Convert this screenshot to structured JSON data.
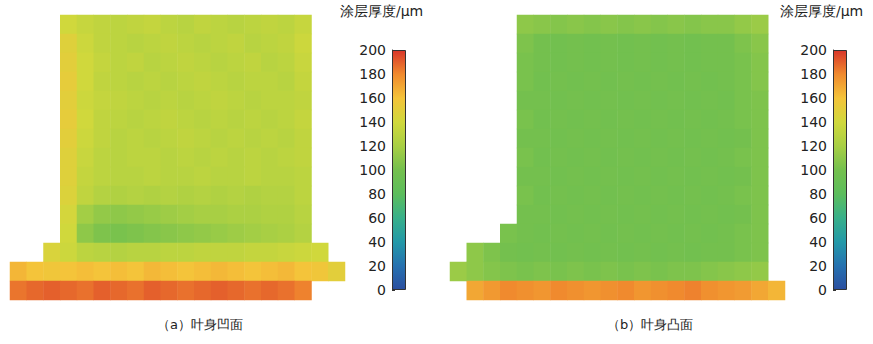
{
  "chart_data": [
    {
      "type": "heatmap",
      "title": "（a）叶身凹面",
      "colorbar": {
        "label": "涂层厚度/μm",
        "range": [
          0,
          200
        ],
        "ticks": [
          0,
          20,
          40,
          60,
          80,
          100,
          120,
          140,
          160,
          180,
          200
        ]
      },
      "cells": [
        [
          null,
          null,
          null,
          140,
          135,
          132,
          130,
          132,
          134,
          130,
          128,
          132,
          130,
          128,
          130,
          132,
          130,
          135,
          null,
          null
        ],
        [
          null,
          null,
          null,
          148,
          138,
          132,
          130,
          128,
          130,
          132,
          130,
          128,
          130,
          132,
          128,
          130,
          132,
          138,
          null,
          null
        ],
        [
          null,
          null,
          null,
          150,
          140,
          134,
          130,
          132,
          128,
          130,
          132,
          130,
          128,
          130,
          132,
          128,
          130,
          136,
          null,
          null
        ],
        [
          null,
          null,
          null,
          152,
          140,
          132,
          130,
          128,
          130,
          128,
          130,
          132,
          130,
          128,
          130,
          130,
          128,
          134,
          null,
          null
        ],
        [
          null,
          null,
          null,
          150,
          138,
          134,
          132,
          130,
          128,
          130,
          128,
          130,
          132,
          130,
          128,
          130,
          130,
          132,
          null,
          null
        ],
        [
          null,
          null,
          null,
          152,
          140,
          132,
          130,
          128,
          130,
          132,
          130,
          128,
          130,
          128,
          130,
          128,
          130,
          134,
          null,
          null
        ],
        [
          null,
          null,
          null,
          150,
          138,
          132,
          128,
          130,
          128,
          130,
          132,
          130,
          128,
          130,
          128,
          130,
          128,
          132,
          null,
          null
        ],
        [
          null,
          null,
          null,
          148,
          136,
          130,
          128,
          130,
          130,
          128,
          130,
          128,
          130,
          128,
          130,
          128,
          130,
          132,
          null,
          null
        ],
        [
          null,
          null,
          null,
          148,
          134,
          130,
          128,
          128,
          130,
          128,
          128,
          130,
          128,
          128,
          130,
          128,
          128,
          130,
          null,
          null
        ],
        [
          null,
          null,
          null,
          146,
          132,
          126,
          124,
          126,
          124,
          126,
          124,
          126,
          124,
          126,
          124,
          126,
          126,
          130,
          null,
          null
        ],
        [
          null,
          null,
          null,
          142,
          118,
          112,
          110,
          112,
          114,
          116,
          118,
          120,
          120,
          122,
          122,
          124,
          124,
          128,
          null,
          null
        ],
        [
          null,
          null,
          null,
          140,
          110,
          104,
          102,
          104,
          106,
          108,
          110,
          112,
          114,
          116,
          118,
          120,
          122,
          126,
          null,
          null
        ],
        [
          null,
          null,
          145,
          138,
          130,
          128,
          126,
          128,
          128,
          130,
          130,
          132,
          132,
          132,
          134,
          134,
          136,
          138,
          140,
          null
        ],
        [
          165,
          160,
          158,
          160,
          162,
          160,
          162,
          160,
          164,
          162,
          160,
          162,
          164,
          162,
          160,
          162,
          164,
          160,
          158,
          150
        ],
        [
          185,
          188,
          190,
          188,
          186,
          190,
          188,
          186,
          190,
          188,
          186,
          188,
          190,
          188,
          186,
          188,
          186,
          182,
          null,
          null
        ]
      ]
    },
    {
      "type": "heatmap",
      "title": "（b）叶身凸面",
      "colorbar": {
        "label": "涂层厚度/μm",
        "range": [
          0,
          200
        ],
        "ticks": [
          0,
          20,
          40,
          60,
          80,
          100,
          120,
          140,
          160,
          180,
          200
        ]
      },
      "cells": [
        [
          null,
          null,
          null,
          null,
          110,
          108,
          106,
          108,
          106,
          108,
          106,
          108,
          106,
          108,
          106,
          108,
          108,
          112,
          115,
          null
        ],
        [
          null,
          null,
          null,
          null,
          104,
          100,
          98,
          100,
          98,
          100,
          98,
          100,
          98,
          100,
          98,
          100,
          100,
          104,
          108,
          null
        ],
        [
          null,
          null,
          null,
          null,
          102,
          100,
          98,
          100,
          98,
          100,
          98,
          100,
          98,
          100,
          98,
          100,
          100,
          102,
          106,
          null
        ],
        [
          null,
          null,
          null,
          null,
          102,
          98,
          100,
          98,
          100,
          98,
          100,
          98,
          100,
          98,
          100,
          98,
          100,
          102,
          106,
          null
        ],
        [
          null,
          null,
          null,
          null,
          100,
          100,
          98,
          100,
          98,
          100,
          98,
          100,
          98,
          100,
          98,
          100,
          98,
          102,
          104,
          null
        ],
        [
          null,
          null,
          null,
          null,
          102,
          98,
          100,
          98,
          100,
          98,
          100,
          98,
          100,
          98,
          100,
          98,
          100,
          102,
          104,
          null
        ],
        [
          null,
          null,
          null,
          null,
          100,
          100,
          98,
          100,
          98,
          100,
          98,
          100,
          98,
          100,
          98,
          100,
          98,
          100,
          104,
          null
        ],
        [
          null,
          null,
          null,
          null,
          102,
          98,
          100,
          98,
          100,
          98,
          100,
          98,
          100,
          98,
          100,
          98,
          100,
          102,
          104,
          null
        ],
        [
          null,
          null,
          null,
          null,
          100,
          100,
          98,
          100,
          98,
          100,
          98,
          100,
          98,
          100,
          98,
          100,
          98,
          100,
          104,
          null
        ],
        [
          null,
          null,
          null,
          null,
          102,
          98,
          100,
          98,
          100,
          98,
          100,
          98,
          100,
          98,
          100,
          98,
          100,
          102,
          104,
          null
        ],
        [
          null,
          null,
          null,
          null,
          100,
          100,
          98,
          100,
          98,
          100,
          98,
          100,
          98,
          100,
          98,
          100,
          98,
          100,
          104,
          null
        ],
        [
          null,
          null,
          null,
          102,
          100,
          98,
          100,
          98,
          100,
          98,
          100,
          98,
          100,
          98,
          100,
          98,
          100,
          102,
          104,
          null
        ],
        [
          null,
          110,
          104,
          100,
          98,
          100,
          98,
          100,
          98,
          100,
          98,
          100,
          98,
          100,
          98,
          100,
          100,
          102,
          104,
          null
        ],
        [
          115,
          110,
          106,
          104,
          102,
          104,
          102,
          104,
          102,
          104,
          102,
          104,
          102,
          104,
          104,
          106,
          108,
          110,
          112,
          null
        ],
        [
          null,
          170,
          175,
          180,
          178,
          176,
          180,
          178,
          176,
          178,
          180,
          176,
          178,
          180,
          182,
          178,
          176,
          174,
          170,
          165
        ]
      ]
    }
  ]
}
